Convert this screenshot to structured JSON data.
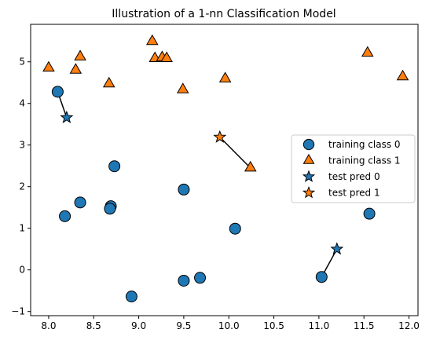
{
  "chart_data": {
    "type": "scatter",
    "title": "Illustration of a 1-nn Classification Model",
    "xlabel": "",
    "ylabel": "",
    "xlim": [
      7.8,
      12.1
    ],
    "ylim": [
      -1.1,
      5.9
    ],
    "xticks": [
      8.0,
      8.5,
      9.0,
      9.5,
      10.0,
      10.5,
      11.0,
      11.5,
      12.0
    ],
    "xtick_labels": [
      "8.0",
      "8.5",
      "9.0",
      "9.5",
      "10.0",
      "10.5",
      "11.0",
      "11.5",
      "12.0"
    ],
    "yticks": [
      -1,
      0,
      1,
      2,
      3,
      4,
      5
    ],
    "ytick_labels": [
      "−1",
      "0",
      "1",
      "2",
      "3",
      "4",
      "5"
    ],
    "grid": false,
    "legend_position": "right",
    "colors": {
      "class0": "#1f77b4",
      "class1": "#ff7f0e",
      "edge": "#000000"
    },
    "series": [
      {
        "name": "training class 0",
        "marker": "circle",
        "points": [
          [
            8.1,
            4.28
          ],
          [
            8.18,
            1.29
          ],
          [
            8.35,
            1.62
          ],
          [
            8.69,
            1.53
          ],
          [
            8.68,
            1.47
          ],
          [
            8.73,
            2.49
          ],
          [
            8.92,
            -0.64
          ],
          [
            9.5,
            1.93
          ],
          [
            9.5,
            -0.26
          ],
          [
            9.68,
            -0.19
          ],
          [
            10.07,
            0.99
          ],
          [
            11.03,
            -0.17
          ],
          [
            11.56,
            1.35
          ]
        ]
      },
      {
        "name": "training class 1",
        "marker": "triangle",
        "points": [
          [
            8.0,
            4.85
          ],
          [
            8.3,
            4.8
          ],
          [
            8.35,
            5.12
          ],
          [
            8.67,
            4.47
          ],
          [
            9.15,
            5.49
          ],
          [
            9.18,
            5.08
          ],
          [
            9.26,
            5.1
          ],
          [
            9.31,
            5.08
          ],
          [
            9.49,
            4.33
          ],
          [
            9.96,
            4.59
          ],
          [
            10.24,
            2.45
          ],
          [
            11.54,
            5.21
          ],
          [
            11.93,
            4.64
          ]
        ]
      },
      {
        "name": "test pred 0",
        "marker": "star",
        "points": [
          [
            8.2,
            3.66
          ],
          [
            11.2,
            0.5
          ]
        ]
      },
      {
        "name": "test pred 1",
        "marker": "star",
        "points": [
          [
            9.9,
            3.19
          ]
        ]
      }
    ],
    "connections": [
      {
        "from": [
          8.2,
          3.66
        ],
        "to": [
          8.1,
          4.28
        ]
      },
      {
        "from": [
          11.2,
          0.5
        ],
        "to": [
          11.03,
          -0.17
        ]
      },
      {
        "from": [
          9.9,
          3.19
        ],
        "to": [
          10.24,
          2.45
        ]
      }
    ],
    "legend": [
      {
        "label": "training class 0",
        "marker": "circle",
        "color": "#1f77b4"
      },
      {
        "label": "training class 1",
        "marker": "triangle",
        "color": "#ff7f0e"
      },
      {
        "label": "test pred 0",
        "marker": "star",
        "color": "#1f77b4"
      },
      {
        "label": "test pred 1",
        "marker": "star",
        "color": "#ff7f0e"
      }
    ]
  }
}
